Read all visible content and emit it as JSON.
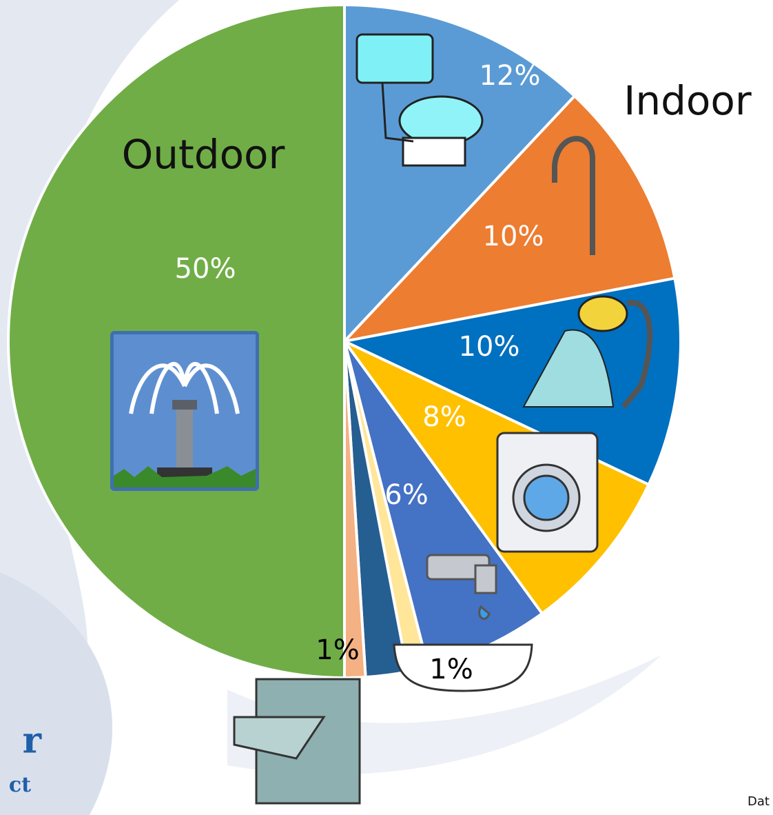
{
  "chart_data": {
    "type": "pie",
    "values": [
      12,
      10,
      10,
      8,
      6,
      1,
      2,
      1,
      50
    ],
    "value_labels": [
      "12%",
      "10%",
      "10%",
      "8%",
      "6%",
      "1%",
      null,
      "1%",
      "50%"
    ],
    "colors": [
      "#5b9bd5",
      "#ed7d31",
      "#0070c0",
      "#ffc000",
      "#4472c4",
      "#ffe699",
      "#255e91",
      "#f4b183",
      "#70ad47"
    ],
    "annotations": [
      "Outdoor",
      "Indoor",
      "Dat"
    ],
    "logo": [
      "r",
      "ct"
    ]
  }
}
